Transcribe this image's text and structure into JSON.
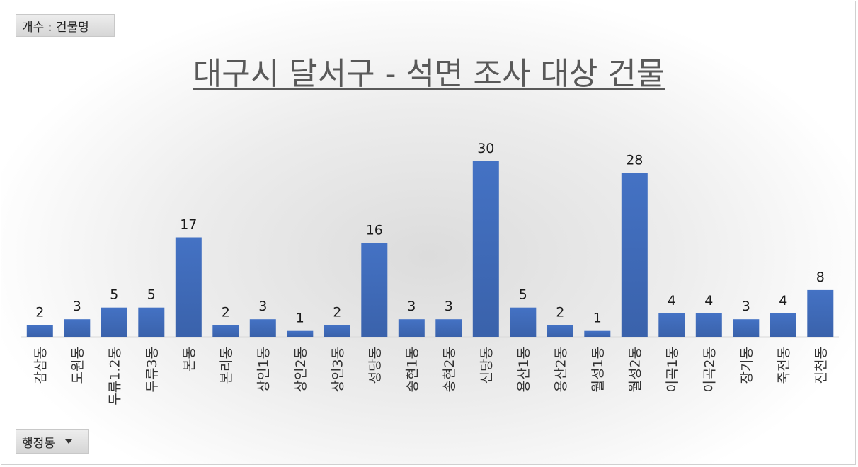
{
  "pivot": {
    "value_field": "개수 : 건물명",
    "axis_field": "행정동"
  },
  "colors": {
    "bar": "#4472c4",
    "bar_dark": "#3a62ab",
    "label": "#1a1a1a",
    "axis": "#d9d9d9"
  },
  "chart_data": {
    "type": "bar",
    "title": "대구시 달서구 - 석면 조사 대상 건물",
    "xlabel": "",
    "ylabel": "",
    "ylim": [
      0,
      30
    ],
    "grid": false,
    "categories": [
      "감삼동",
      "도원동",
      "두류1.2동",
      "두류3동",
      "본동",
      "본리동",
      "상인1동",
      "상인2동",
      "상인3동",
      "성당동",
      "송현1동",
      "송현2동",
      "신당동",
      "용산1동",
      "용산2동",
      "월성1동",
      "월성2동",
      "이곡1동",
      "이곡2동",
      "장기동",
      "죽전동",
      "진천동"
    ],
    "values": [
      2,
      3,
      5,
      5,
      17,
      2,
      3,
      1,
      2,
      16,
      3,
      3,
      30,
      5,
      2,
      1,
      28,
      4,
      4,
      3,
      4,
      8
    ]
  }
}
